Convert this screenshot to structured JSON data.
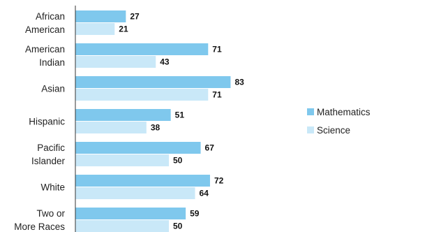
{
  "chart_data": {
    "type": "bar",
    "orientation": "horizontal",
    "categories": [
      [
        "African",
        "American"
      ],
      [
        "American",
        "Indian"
      ],
      [
        "Asian"
      ],
      [
        "Hispanic"
      ],
      [
        "Pacific",
        "Islander"
      ],
      [
        "White"
      ],
      [
        "Two or",
        "More Races"
      ]
    ],
    "series": [
      {
        "name": "Mathematics",
        "color": "#7fc8ed",
        "values": [
          27,
          71,
          83,
          51,
          67,
          72,
          59
        ]
      },
      {
        "name": "Science",
        "color": "#c9e8f8",
        "values": [
          21,
          43,
          71,
          38,
          50,
          64,
          50
        ]
      }
    ],
    "xlim": [
      0,
      100
    ],
    "grid": false,
    "legend_position": "right"
  }
}
